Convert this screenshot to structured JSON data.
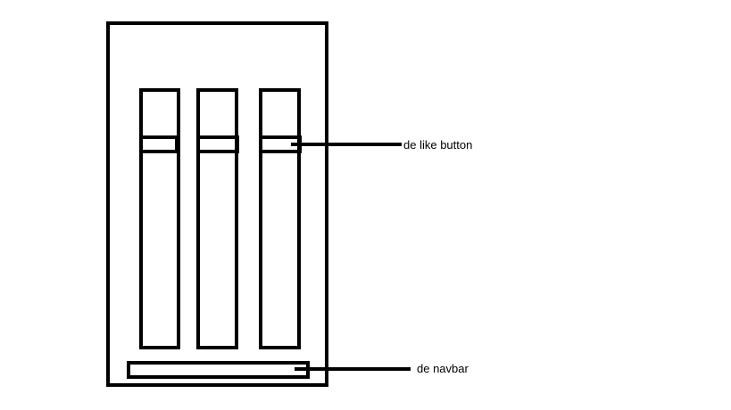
{
  "annotations": {
    "like_button_label": "de like button",
    "navbar_label": "de navbar"
  },
  "colors": {
    "stroke": "#000000",
    "background": "#ffffff"
  }
}
